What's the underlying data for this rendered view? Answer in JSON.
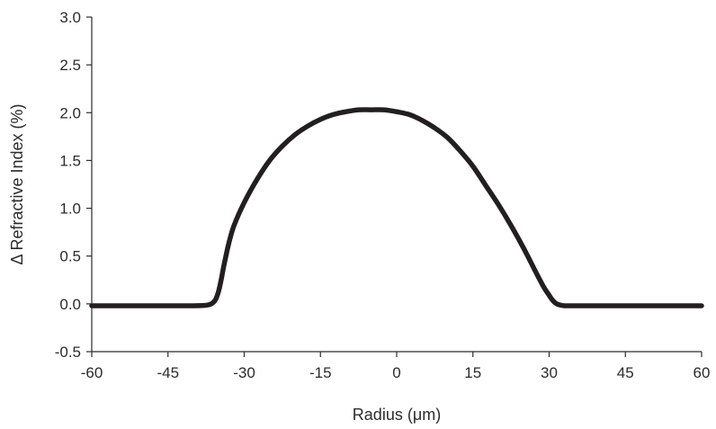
{
  "chart_data": {
    "type": "line",
    "title": "",
    "xlabel": "Radius (μm)",
    "ylabel": "Δ Refractive Index (%)",
    "xlim": [
      -60,
      60
    ],
    "ylim": [
      -0.5,
      3.0
    ],
    "xticks": [
      -60,
      -45,
      -30,
      -15,
      0,
      15,
      30,
      45,
      60
    ],
    "yticks": [
      -0.5,
      0.0,
      0.5,
      1.0,
      1.5,
      2.0,
      2.5,
      3.0
    ],
    "xtick_labels": [
      "-60",
      "-45",
      "-30",
      "-15",
      "0",
      "15",
      "30",
      "45",
      "60"
    ],
    "ytick_labels": [
      "-0.5",
      "0.0",
      "0.5",
      "1.0",
      "1.5",
      "2.0",
      "2.5",
      "3.0"
    ],
    "grid": false,
    "legend": "none",
    "series": [
      {
        "color": "#231f20",
        "x": [
          -60,
          -50,
          -40,
          -37,
          -36,
          -35.5,
          -35,
          -34.5,
          -34,
          -33,
          -32,
          -30,
          -27.5,
          -25,
          -22.5,
          -20,
          -17.5,
          -15,
          -12.5,
          -10,
          -7.5,
          -5,
          -2.5,
          0,
          2.5,
          5,
          7.5,
          10,
          12.5,
          15,
          17.5,
          20,
          22.5,
          25,
          27.5,
          29,
          30,
          30.5,
          31,
          31.5,
          32,
          33,
          35,
          40,
          50,
          60
        ],
        "y": [
          -0.02,
          -0.02,
          -0.02,
          -0.01,
          0.02,
          0.06,
          0.14,
          0.26,
          0.4,
          0.64,
          0.82,
          1.06,
          1.3,
          1.5,
          1.65,
          1.77,
          1.86,
          1.93,
          1.98,
          2.01,
          2.03,
          2.03,
          2.03,
          2.01,
          1.98,
          1.92,
          1.84,
          1.74,
          1.6,
          1.44,
          1.24,
          1.04,
          0.82,
          0.58,
          0.32,
          0.17,
          0.09,
          0.05,
          0.02,
          0.0,
          -0.01,
          -0.02,
          -0.02,
          -0.02,
          -0.02,
          -0.02
        ]
      }
    ]
  }
}
